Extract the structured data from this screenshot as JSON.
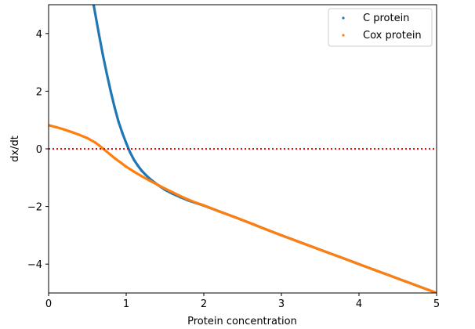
{
  "chart_data": {
    "type": "scatter",
    "title": "",
    "xlabel": "Protein concentration",
    "ylabel": "dx/dt",
    "xlim": [
      0,
      5
    ],
    "ylim": [
      -5,
      5
    ],
    "xticks": [
      0,
      1,
      2,
      3,
      4,
      5
    ],
    "yticks": [
      -4,
      -2,
      0,
      2,
      4
    ],
    "xtick_labels": [
      "0",
      "1",
      "2",
      "3",
      "4",
      "5"
    ],
    "ytick_labels": [
      "−4",
      "−2",
      "0",
      "2",
      "4"
    ],
    "grid": false,
    "legend": "top-right",
    "reference_line": {
      "y": 0,
      "style": "dotted",
      "color": "#ff0000"
    },
    "series": [
      {
        "name": "C protein",
        "color": "#1f77b4",
        "x": [
          0.58,
          0.6,
          0.65,
          0.7,
          0.75,
          0.8,
          0.85,
          0.9,
          0.95,
          1.0,
          1.05,
          1.1,
          1.15,
          1.2,
          1.25,
          1.3,
          1.4,
          1.5,
          1.6,
          1.7,
          1.8,
          1.9,
          2.0,
          2.2,
          2.4,
          2.6,
          2.8,
          3.0,
          3.2,
          3.4,
          3.6,
          3.8,
          4.0,
          4.2,
          4.4,
          4.6,
          4.8,
          5.0
        ],
        "y": [
          5.0,
          4.7,
          3.95,
          3.25,
          2.6,
          2.0,
          1.45,
          0.95,
          0.55,
          0.2,
          -0.12,
          -0.38,
          -0.58,
          -0.76,
          -0.9,
          -1.03,
          -1.24,
          -1.42,
          -1.56,
          -1.68,
          -1.79,
          -1.88,
          -1.97,
          -2.17,
          -2.37,
          -2.58,
          -2.79,
          -3.0,
          -3.2,
          -3.4,
          -3.6,
          -3.8,
          -4.0,
          -4.2,
          -4.4,
          -4.6,
          -4.8,
          -5.0
        ]
      },
      {
        "name": "Cox protein",
        "color": "#ff7f0e",
        "x": [
          0.0,
          0.1,
          0.2,
          0.3,
          0.4,
          0.5,
          0.6,
          0.65,
          0.7,
          0.75,
          0.8,
          0.85,
          0.9,
          0.95,
          1.0,
          1.1,
          1.2,
          1.3,
          1.4,
          1.5,
          1.6,
          1.7,
          1.8,
          1.9,
          2.0,
          2.2,
          2.4,
          2.6,
          2.8,
          3.0,
          3.2,
          3.4,
          3.6,
          3.8,
          4.0,
          4.2,
          4.4,
          4.6,
          4.8,
          5.0
        ],
        "y": [
          0.82,
          0.75,
          0.67,
          0.58,
          0.48,
          0.37,
          0.22,
          0.12,
          0.01,
          -0.1,
          -0.21,
          -0.32,
          -0.42,
          -0.52,
          -0.62,
          -0.79,
          -0.95,
          -1.1,
          -1.24,
          -1.38,
          -1.51,
          -1.64,
          -1.76,
          -1.87,
          -1.96,
          -2.17,
          -2.37,
          -2.58,
          -2.79,
          -3.0,
          -3.2,
          -3.4,
          -3.6,
          -3.8,
          -4.0,
          -4.2,
          -4.4,
          -4.6,
          -4.8,
          -5.0
        ]
      }
    ]
  }
}
